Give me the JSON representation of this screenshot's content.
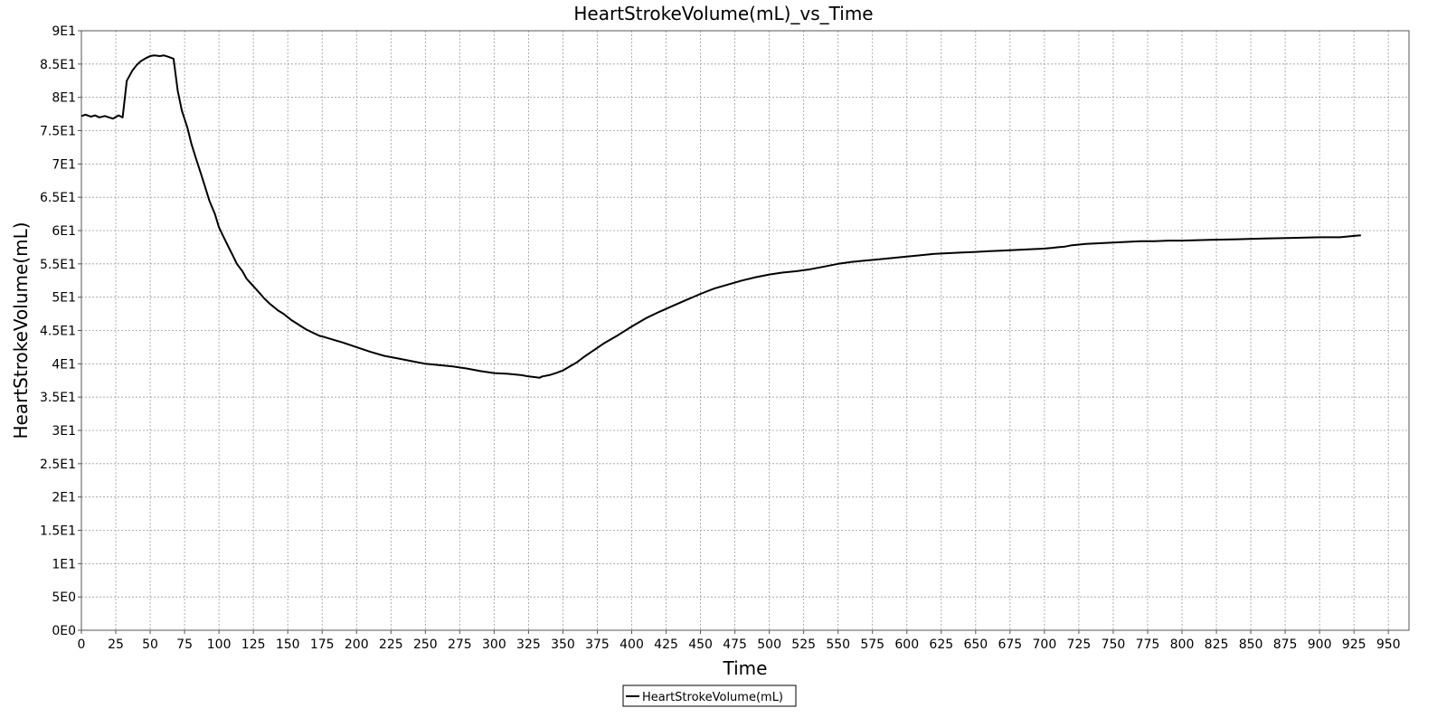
{
  "chart_data": {
    "type": "line",
    "title": "HeartStrokeVolume(mL)_vs_Time",
    "xlabel": "Time",
    "ylabel": "HeartStrokeVolume(mL)",
    "xlim": [
      0,
      965
    ],
    "ylim": [
      0,
      90
    ],
    "x_ticks": [
      0,
      25,
      50,
      75,
      100,
      125,
      150,
      175,
      200,
      225,
      250,
      275,
      300,
      325,
      350,
      375,
      400,
      425,
      450,
      475,
      500,
      525,
      550,
      575,
      600,
      625,
      650,
      675,
      700,
      725,
      750,
      775,
      800,
      825,
      850,
      875,
      900,
      925,
      950
    ],
    "x_tick_labels": [
      "0",
      "25",
      "50",
      "75",
      "100",
      "125",
      "150",
      "175",
      "200",
      "225",
      "250",
      "275",
      "300",
      "325",
      "350",
      "375",
      "400",
      "425",
      "450",
      "475",
      "500",
      "525",
      "550",
      "575",
      "600",
      "625",
      "650",
      "675",
      "700",
      "725",
      "750",
      "775",
      "800",
      "825",
      "850",
      "875",
      "900",
      "925",
      "950"
    ],
    "y_ticks": [
      0,
      5,
      10,
      15,
      20,
      25,
      30,
      35,
      40,
      45,
      50,
      55,
      60,
      65,
      70,
      75,
      80,
      85,
      90
    ],
    "y_tick_labels": [
      "0E0",
      "5E0",
      "1E1",
      "1.5E1",
      "2E1",
      "2.5E1",
      "3E1",
      "3.5E1",
      "4E1",
      "4.5E1",
      "5E1",
      "5.5E1",
      "6E1",
      "6.5E1",
      "7E1",
      "7.5E1",
      "8E1",
      "8.5E1",
      "9E1"
    ],
    "grid": true,
    "legend_position": "bottom-center",
    "series": [
      {
        "name": "HeartStrokeVolume(mL)",
        "color": "#000000",
        "x": [
          0,
          3,
          7,
          10,
          13,
          17,
          20,
          23,
          27,
          30,
          33,
          37,
          40,
          43,
          47,
          50,
          53,
          57,
          60,
          63,
          67,
          70,
          73,
          77,
          80,
          83,
          87,
          90,
          93,
          97,
          100,
          103,
          107,
          110,
          113,
          117,
          120,
          123,
          127,
          130,
          133,
          137,
          140,
          143,
          147,
          150,
          153,
          157,
          160,
          163,
          167,
          170,
          173,
          177,
          180,
          190,
          200,
          210,
          220,
          230,
          240,
          250,
          260,
          270,
          280,
          290,
          300,
          310,
          320,
          325,
          330,
          333,
          335,
          340,
          345,
          350,
          355,
          360,
          365,
          370,
          375,
          380,
          390,
          400,
          410,
          420,
          430,
          440,
          450,
          460,
          470,
          480,
          490,
          500,
          510,
          520,
          530,
          540,
          550,
          560,
          570,
          580,
          590,
          600,
          610,
          620,
          630,
          640,
          650,
          660,
          670,
          680,
          690,
          700,
          705,
          710,
          715,
          720,
          725,
          730,
          740,
          750,
          760,
          770,
          780,
          790,
          800,
          820,
          840,
          860,
          880,
          900,
          915,
          920,
          925,
          930
        ],
        "y": [
          77.2,
          77.4,
          77.1,
          77.3,
          77.0,
          77.2,
          77.0,
          76.8,
          77.3,
          77.0,
          82.5,
          84.0,
          84.8,
          85.4,
          85.9,
          86.2,
          86.3,
          86.2,
          86.3,
          86.1,
          85.8,
          81.0,
          78.0,
          75.5,
          73.0,
          71.0,
          68.5,
          66.5,
          64.5,
          62.5,
          60.5,
          59.2,
          57.5,
          56.3,
          55.0,
          53.9,
          52.8,
          52.1,
          51.2,
          50.5,
          49.8,
          49.0,
          48.5,
          48.0,
          47.5,
          47.0,
          46.5,
          46.0,
          45.6,
          45.2,
          44.8,
          44.5,
          44.2,
          44.0,
          43.8,
          43.2,
          42.5,
          41.8,
          41.2,
          40.8,
          40.4,
          40.0,
          39.8,
          39.6,
          39.3,
          38.9,
          38.6,
          38.5,
          38.3,
          38.1,
          38.0,
          37.9,
          38.1,
          38.3,
          38.6,
          39.0,
          39.6,
          40.2,
          41.0,
          41.7,
          42.4,
          43.1,
          44.3,
          45.6,
          46.8,
          47.8,
          48.7,
          49.6,
          50.5,
          51.3,
          51.9,
          52.5,
          53.0,
          53.4,
          53.7,
          53.9,
          54.2,
          54.6,
          55.0,
          55.3,
          55.5,
          55.7,
          55.9,
          56.1,
          56.3,
          56.5,
          56.6,
          56.7,
          56.8,
          56.9,
          57.0,
          57.1,
          57.2,
          57.3,
          57.4,
          57.5,
          57.6,
          57.8,
          57.9,
          58.0,
          58.1,
          58.2,
          58.3,
          58.4,
          58.4,
          58.5,
          58.5,
          58.6,
          58.7,
          58.8,
          58.9,
          59.0,
          59.0,
          59.1,
          59.2,
          59.3
        ]
      }
    ]
  }
}
